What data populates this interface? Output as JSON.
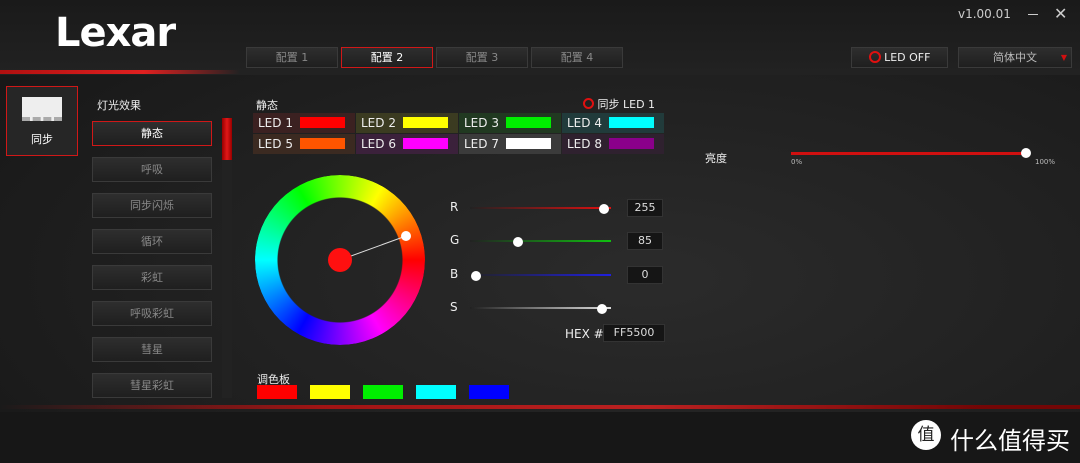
{
  "header": {
    "logo": "Lexar",
    "version": "v1.00.01",
    "profiles": [
      "配置 1",
      "配置 2",
      "配置 3",
      "配置 4"
    ],
    "led_off": "LED OFF",
    "language": "简体中文"
  },
  "sidebar": {
    "sync": "同步"
  },
  "effects": {
    "title": "灯光效果",
    "items": [
      "静态",
      "呼吸",
      "同步闪烁",
      "循环",
      "彩虹",
      "呼吸彩虹",
      "彗星",
      "彗星彩虹"
    ]
  },
  "static": {
    "title": "静态",
    "sync_led": "同步 LED 1",
    "leds": [
      {
        "name": "LED 1",
        "color": "#ff0000"
      },
      {
        "name": "LED 2",
        "color": "#ffff00"
      },
      {
        "name": "LED 3",
        "color": "#00ee00"
      },
      {
        "name": "LED 4",
        "color": "#00ffff"
      },
      {
        "name": "LED 5",
        "color": "#ff5500"
      },
      {
        "name": "LED 6",
        "color": "#ff00ff"
      },
      {
        "name": "LED 7",
        "color": "#ffffff"
      },
      {
        "name": "LED 8",
        "color": "#8a008a"
      }
    ]
  },
  "rgb": {
    "channels": [
      {
        "label": "R",
        "value": 255
      },
      {
        "label": "G",
        "value": 85
      },
      {
        "label": "B",
        "value": 0
      },
      {
        "label": "S"
      }
    ],
    "hex_label": "HEX #",
    "hex": "FF5500"
  },
  "brightness": {
    "label": "亮度",
    "min_label": "0%",
    "max_label": "100%"
  },
  "palette": {
    "title": "调色板",
    "colors": [
      "#ff0000",
      "#ffff00",
      "#00ee00",
      "#00ffff",
      "#0000ff"
    ]
  },
  "watermark": {
    "icon": "值",
    "text": "什么值得买"
  }
}
